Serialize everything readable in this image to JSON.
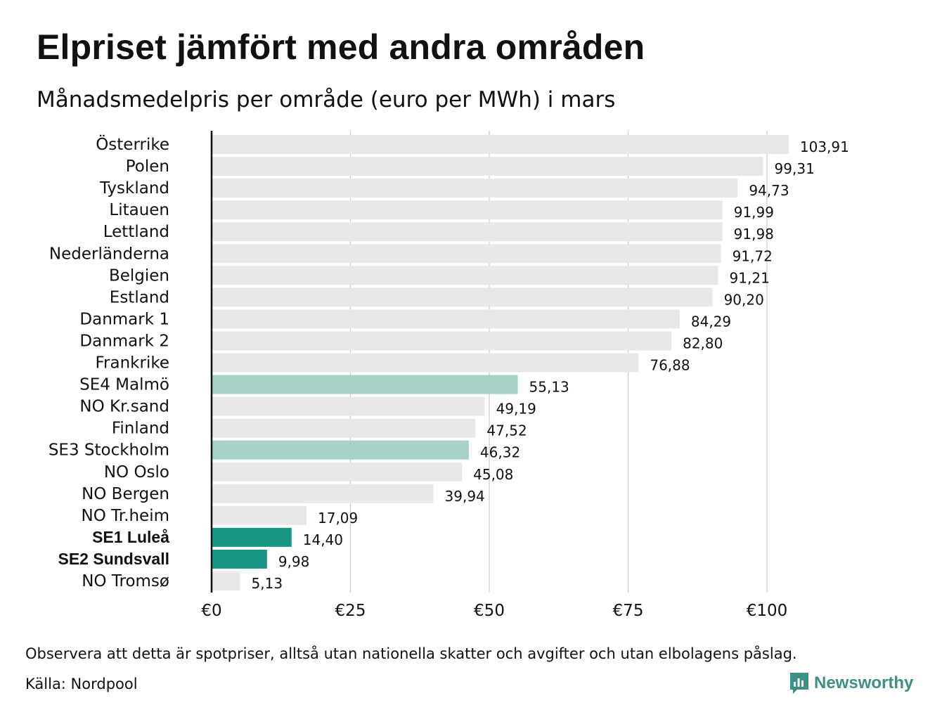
{
  "title": "Elpriset jämfört med andra områden",
  "subtitle": "Månadsmedelpris per område (euro per MWh) i mars",
  "chart_data": {
    "type": "bar",
    "orientation": "horizontal",
    "categories": [
      "Österrike",
      "Polen",
      "Tyskland",
      "Litauen",
      "Lettland",
      "Nederländerna",
      "Belgien",
      "Estland",
      "Danmark 1",
      "Danmark 2",
      "Frankrike",
      "SE4 Malmö",
      "NO Kr.sand",
      "Finland",
      "SE3 Stockholm",
      "NO Oslo",
      "NO Bergen",
      "NO Tr.heim",
      "SE1 Luleå",
      "SE2 Sundsvall",
      "NO Tromsø"
    ],
    "values": [
      103.91,
      99.31,
      94.73,
      91.99,
      91.98,
      91.72,
      91.21,
      90.2,
      84.29,
      82.8,
      76.88,
      55.13,
      49.19,
      47.52,
      46.32,
      45.08,
      39.94,
      17.09,
      14.4,
      9.98,
      5.13
    ],
    "value_labels": [
      "103,91",
      "99,31",
      "94,73",
      "91,99",
      "91,98",
      "91,72",
      "91,21",
      "90,20",
      "84,29",
      "82,80",
      "76,88",
      "55,13",
      "49,19",
      "47,52",
      "46,32",
      "45,08",
      "39,94",
      "17,09",
      "14,40",
      "9,98",
      "5,13"
    ],
    "highlight": [
      "none",
      "none",
      "none",
      "none",
      "none",
      "none",
      "none",
      "none",
      "none",
      "none",
      "none",
      "light",
      "none",
      "none",
      "light",
      "none",
      "none",
      "none",
      "strong",
      "strong",
      "none"
    ],
    "bold_labels": [
      "SE1 Luleå",
      "SE2 Sundsvall"
    ],
    "xlim": [
      0,
      110
    ],
    "xticks": [
      0,
      25,
      50,
      75,
      100
    ],
    "xtick_labels": [
      "€0",
      "€25",
      "€50",
      "€75",
      "€100"
    ],
    "grid": true,
    "xlabel": "",
    "ylabel": "",
    "colors": {
      "default": "#e8e8e8",
      "light": "#a6d1c9",
      "strong": "#1a9685",
      "grid": "#cccccc",
      "axis": "#111111"
    }
  },
  "footer": {
    "note": "Observera att detta är spotpriser, alltså utan nationella skatter och avgifter och utan elbolagens påslag.",
    "source": "Källa: Nordpool"
  },
  "logo": {
    "text": "Newsworthy",
    "icon": "newsworthy-chart-icon",
    "color": "#3e8f86"
  }
}
